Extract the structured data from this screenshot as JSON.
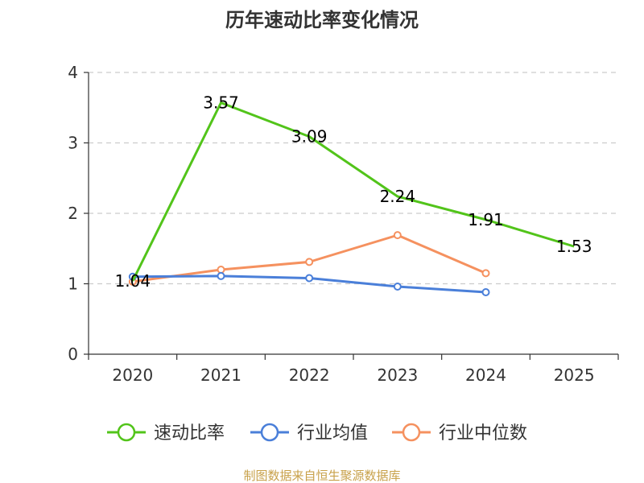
{
  "chart_data": {
    "type": "line",
    "title": "历年速动比率变化情况",
    "categories": [
      "2020",
      "2021",
      "2022",
      "2023",
      "2024",
      "2025"
    ],
    "ylim": [
      0,
      4
    ],
    "yticks": [
      0,
      1,
      2,
      3,
      4
    ],
    "grid": true,
    "legend_position": "bottom",
    "series": [
      {
        "name": "速动比率",
        "color": "#52c41a",
        "values": [
          1.04,
          3.57,
          3.09,
          2.24,
          1.91,
          1.53
        ],
        "labels": [
          "1.04",
          "3.57",
          "3.09",
          "2.24",
          "1.91",
          "1.53"
        ],
        "show_markers": false
      },
      {
        "name": "行业均值",
        "color": "#4a7fd9",
        "values": [
          1.1,
          1.11,
          1.08,
          0.96,
          0.88,
          null
        ],
        "show_markers": true
      },
      {
        "name": "行业中位数",
        "color": "#f5915f",
        "values": [
          1.03,
          1.2,
          1.31,
          1.69,
          1.15,
          null
        ],
        "show_markers": true
      }
    ]
  },
  "source_text": "制图数据来自恒生聚源数据库",
  "source_color": "#c8a14a"
}
